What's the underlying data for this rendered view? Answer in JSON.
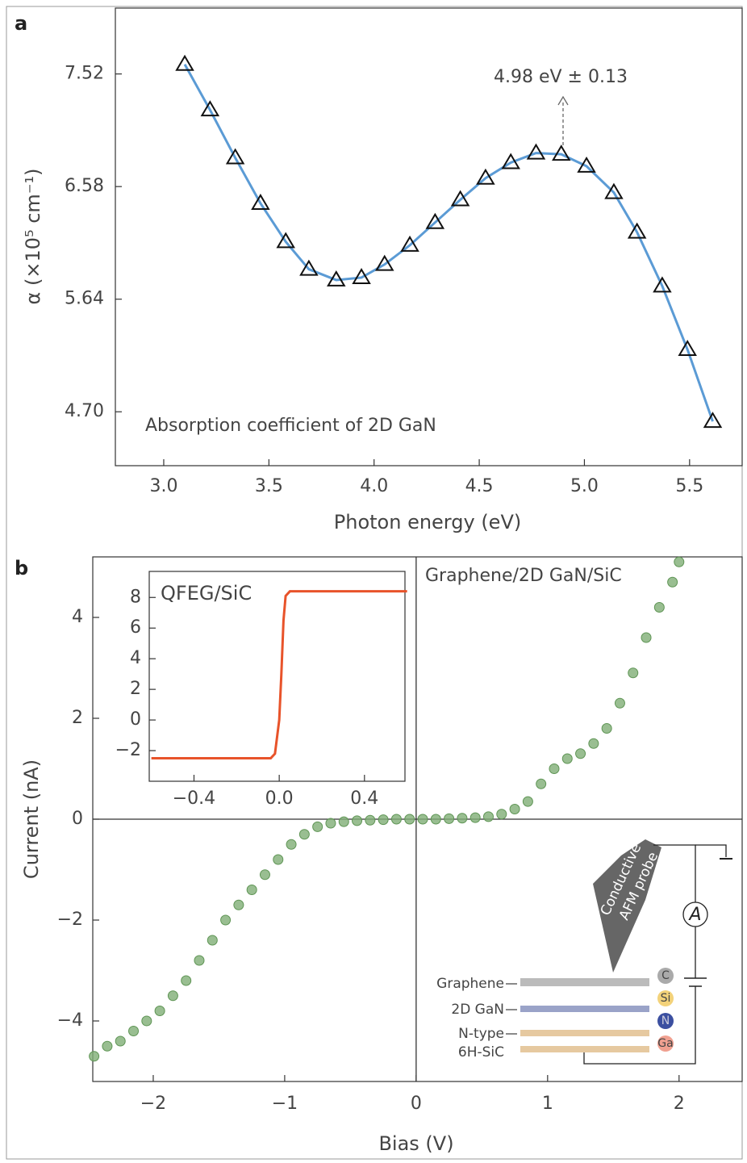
{
  "chart_data": [
    {
      "type": "line",
      "panel": "a",
      "xlabel": "Photon energy (eV)",
      "ylabel": "α (×10⁵ cm⁻¹)",
      "annotations": [
        "4.98 eV ± 0.13",
        "Absorption coefficient of 2D GaN"
      ],
      "x": [
        3.1,
        3.22,
        3.34,
        3.46,
        3.58,
        3.69,
        3.82,
        3.94,
        4.05,
        4.17,
        4.29,
        4.41,
        4.53,
        4.65,
        4.77,
        4.89,
        5.01,
        5.14,
        5.25,
        5.37,
        5.49,
        5.61
      ],
      "values": [
        7.6,
        7.22,
        6.82,
        6.44,
        6.12,
        5.89,
        5.8,
        5.82,
        5.93,
        6.09,
        6.28,
        6.47,
        6.65,
        6.78,
        6.86,
        6.85,
        6.75,
        6.53,
        6.2,
        5.75,
        5.22,
        4.62
      ],
      "color": "#5b9bd5",
      "marker": "triangle",
      "xlim": [
        2.77,
        5.75
      ],
      "xticks": [
        {
          "value": 3,
          "label": "3.0"
        },
        3.5,
        {
          "value": 4,
          "label": "4.0"
        },
        4.5,
        {
          "value": 5,
          "label": "5.0"
        },
        5.5
      ],
      "ylim": [
        4.25,
        8.07
      ],
      "yticks": [
        {
          "value": 4.7,
          "label": "4.70"
        },
        5.64,
        6.58,
        7.52
      ]
    },
    {
      "type": "scatter",
      "panel": "b",
      "xlabel": "Bias (V)",
      "ylabel": "Current (nA)",
      "annotations": [
        "Graphene/2D GaN/SiC"
      ],
      "schematic_labels": [
        "Conductive",
        "AFM probe",
        "A",
        "Graphene",
        "2D GaN",
        "N-type",
        "6H-SiC",
        "C",
        "Si",
        "N",
        "Ga"
      ],
      "x": [
        -2.45,
        -2.35,
        -2.25,
        -2.15,
        -2.05,
        -1.95,
        -1.85,
        -1.75,
        -1.65,
        -1.55,
        -1.45,
        -1.35,
        -1.25,
        -1.15,
        -1.05,
        -0.95,
        -0.85,
        -0.75,
        -0.65,
        -0.55,
        -0.45,
        -0.35,
        -0.25,
        -0.15,
        -0.05,
        0.05,
        0.15,
        0.25,
        0.35,
        0.45,
        0.55,
        0.65,
        0.75,
        0.85,
        0.95,
        1.05,
        1.15,
        1.25,
        1.35,
        1.45,
        1.55,
        1.65,
        1.75,
        1.85,
        1.95,
        2.0
      ],
      "values": [
        -4.7,
        -4.5,
        -4.4,
        -4.2,
        -4.0,
        -3.8,
        -3.5,
        -3.2,
        -2.8,
        -2.4,
        -2.0,
        -1.7,
        -1.4,
        -1.1,
        -0.8,
        -0.5,
        -0.3,
        -0.15,
        -0.08,
        -0.05,
        -0.03,
        -0.02,
        -0.01,
        0,
        0,
        0,
        0,
        0.01,
        0.02,
        0.03,
        0.05,
        0.1,
        0.2,
        0.35,
        0.7,
        1.0,
        1.2,
        1.3,
        1.5,
        1.8,
        2.3,
        2.9,
        3.6,
        4.2,
        4.7,
        5.1
      ],
      "color": "#7fae75",
      "xlim": [
        -2.46,
        2.48
      ],
      "xticks": [
        {
          "value": -2,
          "label": "−2"
        },
        {
          "value": -1,
          "label": "−1"
        },
        0,
        1,
        2
      ],
      "ylim": [
        -5.2,
        5.2
      ],
      "yticks": [
        {
          "value": -4,
          "label": "−4"
        },
        {
          "value": -2,
          "label": "−2"
        },
        0,
        2,
        4
      ]
    },
    {
      "type": "line",
      "title": "QFEG/SiC",
      "x": [
        -0.6,
        -0.1,
        -0.04,
        -0.02,
        0,
        0.01,
        0.02,
        0.03,
        0.05,
        0.1,
        0.6
      ],
      "values": [
        -2.5,
        -2.5,
        -2.5,
        -2.2,
        0,
        3,
        6.5,
        8.1,
        8.4,
        8.4,
        8.4
      ],
      "color": "#e8532a",
      "xlim": [
        -0.61,
        0.59
      ],
      "xticks": [
        {
          "value": -0.4,
          "label": "−0.4"
        },
        {
          "value": 0,
          "label": "0.0"
        },
        0.4
      ],
      "ylim": [
        -4.0,
        9.7
      ],
      "yticks": [
        {
          "value": -2,
          "label": "−2"
        },
        0,
        2,
        4,
        6,
        8
      ]
    }
  ]
}
